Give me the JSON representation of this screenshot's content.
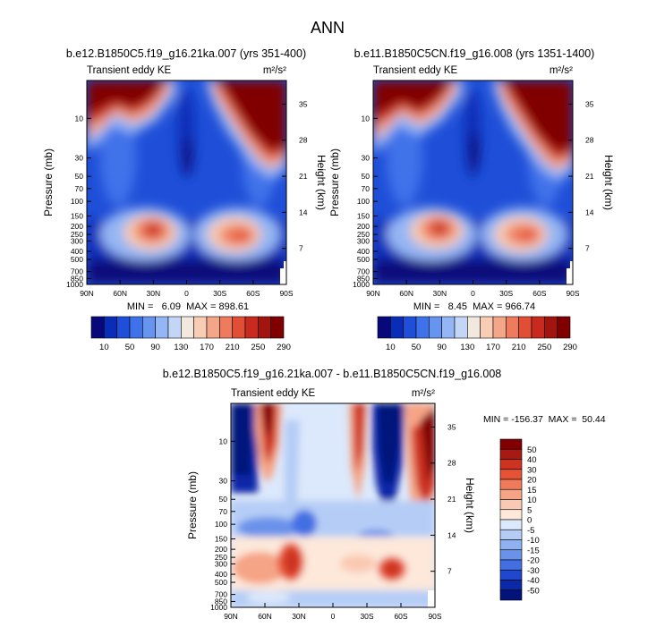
{
  "figure": {
    "title": "ANN"
  },
  "colorbar_top": {
    "labels": [
      "10",
      "50",
      "90",
      "130",
      "170",
      "210",
      "250",
      "290"
    ],
    "colors": [
      "#08087a",
      "#0a2db8",
      "#1f4fd8",
      "#3f72ea",
      "#6694ef",
      "#94b6f4",
      "#c3d6f8",
      "#f3e8dd",
      "#f8cdb4",
      "#f4a688",
      "#ee7b5d",
      "#e14e36",
      "#c92a1f",
      "#a21410",
      "#800000"
    ]
  },
  "colorbar_diff": {
    "labels": [
      "50",
      "40",
      "30",
      "20",
      "15",
      "10",
      "5",
      "0",
      "-5",
      "-10",
      "-15",
      "-20",
      "-30",
      "-40",
      "-50"
    ],
    "colors": [
      "#800000",
      "#a71912",
      "#cc3320",
      "#e65234",
      "#f17a5a",
      "#f6a486",
      "#fac9b3",
      "#fde8da",
      "#dce8fb",
      "#b5cdf6",
      "#8fb1f1",
      "#6a92ea",
      "#4270e3",
      "#1f48cf",
      "#0a28a8",
      "#04137a"
    ]
  },
  "chart_data": [
    {
      "type": "heatmap",
      "title": "b.e12.B1850C5.f19_g16.21ka.007 (yrs 351-400)",
      "subtitle_left": "Transient eddy KE",
      "units": "m²/s²",
      "ylabel": "Pressure (mb)",
      "ylabel_right": "Height (km)",
      "x_ticks": [
        "90N",
        "60N",
        "30N",
        "0",
        "30S",
        "60S",
        "90S"
      ],
      "y_ticks": [
        "10",
        "30",
        "50",
        "70",
        "100",
        "150",
        "200",
        "250",
        "300",
        "400",
        "500",
        "700",
        "850",
        "1000"
      ],
      "height_ticks": [
        "35",
        "28",
        "21",
        "14",
        "7"
      ],
      "min_label": "MIN =   6.09  MAX = 898.61",
      "min": 6.09,
      "max": 898.61,
      "contour_levels": [
        10,
        30,
        50,
        70,
        90,
        110,
        130,
        150,
        170,
        190,
        210,
        230,
        250,
        270,
        290
      ]
    },
    {
      "type": "heatmap",
      "title": "b.e11.B1850C5CN.f19_g16.008 (yrs 1351-1400)",
      "subtitle_left": "Transient eddy KE",
      "units": "m²/s²",
      "ylabel": "Pressure (mb)",
      "ylabel_right": "Height (km)",
      "x_ticks": [
        "90N",
        "60N",
        "30N",
        "0",
        "30S",
        "60S",
        "90S"
      ],
      "y_ticks": [
        "10",
        "30",
        "50",
        "70",
        "100",
        "150",
        "200",
        "250",
        "300",
        "400",
        "500",
        "700",
        "850",
        "1000"
      ],
      "height_ticks": [
        "35",
        "28",
        "21",
        "14",
        "7"
      ],
      "min_label": "MIN =   8.45  MAX = 966.74",
      "min": 8.45,
      "max": 966.74,
      "contour_levels": [
        10,
        30,
        50,
        70,
        90,
        110,
        130,
        150,
        170,
        190,
        210,
        230,
        250,
        270,
        290
      ]
    },
    {
      "type": "heatmap",
      "title": "b.e12.B1850C5.f19_g16.21ka.007 - b.e11.B1850C5CN.f19_g16.008",
      "subtitle_left": "Transient eddy KE",
      "units": "m²/s²",
      "ylabel": "Pressure (mb)",
      "ylabel_right": "Height (km)",
      "x_ticks": [
        "90N",
        "60N",
        "30N",
        "0",
        "30S",
        "60S",
        "90S"
      ],
      "y_ticks": [
        "10",
        "30",
        "50",
        "70",
        "100",
        "150",
        "200",
        "250",
        "300",
        "400",
        "500",
        "700",
        "850",
        "1000"
      ],
      "height_ticks": [
        "35",
        "28",
        "21",
        "14",
        "7"
      ],
      "min_label": "MIN = -156.37  MAX =  50.44",
      "min": -156.37,
      "max": 50.44,
      "contour_levels": [
        -50,
        -40,
        -30,
        -20,
        -15,
        -10,
        -5,
        0,
        5,
        10,
        15,
        20,
        30,
        40,
        50
      ]
    }
  ]
}
